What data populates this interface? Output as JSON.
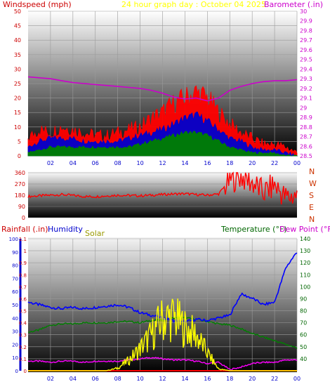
{
  "chart_data": [
    {
      "type": "line",
      "title": "24 hour graph day : October 04 2025",
      "left_axis_label": "Windspeed (mph)",
      "right_axis_label": "Barometer (.in)",
      "x_ticks": [
        "02",
        "04",
        "06",
        "08",
        "10",
        "12",
        "14",
        "16",
        "18",
        "20",
        "22",
        "00"
      ],
      "ylim": [
        0,
        50
      ],
      "y_ticks": [
        0,
        5,
        10,
        15,
        20,
        25,
        30,
        35,
        40,
        45,
        50
      ],
      "ylim_right": [
        28.5,
        30.0
      ],
      "y_ticks_right": [
        "28.5",
        "28.6",
        "28.7",
        "28.8",
        "28.9",
        "29",
        "29.1",
        "29.2",
        "29.3",
        "29.4",
        "29.5",
        "29.6",
        "29.7",
        "29.8",
        "29.9",
        "30"
      ],
      "grid": true,
      "x": [
        0,
        1,
        2,
        3,
        4,
        5,
        6,
        7,
        8,
        9,
        10,
        11,
        12,
        13,
        14,
        15,
        16,
        17,
        18,
        19,
        20,
        21,
        22,
        23,
        24
      ],
      "series": [
        {
          "color": "#ff0000",
          "values": [
            6,
            9,
            8,
            10,
            9,
            8,
            7,
            7,
            8,
            9,
            10,
            13,
            15,
            18,
            20,
            22,
            20,
            15,
            11,
            8,
            6,
            4,
            4,
            3,
            1
          ]
        },
        {
          "color": "#0000cc",
          "values": [
            3,
            5,
            6,
            6,
            6,
            5,
            5,
            5,
            5,
            6,
            7,
            8,
            9,
            11,
            13,
            14,
            12,
            9,
            6,
            5,
            3,
            2,
            2,
            1,
            0
          ]
        },
        {
          "color": "#008000",
          "values": [
            1,
            2,
            3,
            3,
            3,
            3,
            3,
            3,
            3,
            3,
            4,
            5,
            6,
            7,
            8,
            8,
            7,
            5,
            3,
            2,
            1,
            1,
            1,
            0,
            0
          ]
        },
        {
          "color": "#cc00cc",
          "values": [
            29.32,
            29.31,
            29.3,
            29.28,
            29.26,
            29.25,
            29.24,
            29.23,
            29.22,
            29.21,
            29.2,
            29.18,
            29.15,
            29.11,
            29.09,
            29.1,
            29.07,
            29.1,
            29.18,
            29.22,
            29.25,
            29.27,
            29.28,
            29.28,
            29.29
          ]
        }
      ]
    },
    {
      "type": "line",
      "x_ticks": [],
      "ylim": [
        0,
        360
      ],
      "y_ticks": [
        0,
        90,
        180,
        270,
        360
      ],
      "direction_labels": [
        "N",
        "W",
        "S",
        "E",
        "N"
      ],
      "x": [
        0,
        1,
        2,
        3,
        4,
        5,
        6,
        7,
        8,
        9,
        10,
        11,
        12,
        13,
        14,
        15,
        16,
        17,
        18,
        19,
        20,
        21,
        22,
        23,
        24
      ],
      "series": [
        {
          "color": "#ff0000",
          "values": [
            170,
            175,
            180,
            185,
            178,
            170,
            168,
            175,
            180,
            178,
            175,
            180,
            185,
            190,
            192,
            185,
            180,
            190,
            300,
            330,
            280,
            200,
            260,
            160,
            180
          ]
        }
      ]
    },
    {
      "type": "line",
      "legend_labels": [
        "Rainfall (.in)",
        "Humidity",
        "Solar",
        "Temperature (°F)",
        "Dew Point (°F)"
      ],
      "x_ticks": [
        "02",
        "04",
        "06",
        "08",
        "10",
        "12",
        "14",
        "16",
        "18",
        "20",
        "22",
        "00"
      ],
      "ylim_humidity": [
        0,
        100
      ],
      "y_ticks_humidity": [
        0,
        10,
        20,
        30,
        40,
        50,
        60,
        70,
        80,
        90,
        100
      ],
      "ylim_rain": [
        0,
        1.1
      ],
      "y_ticks_rain": [
        "0",
        "0.1",
        "0.2",
        "0.3",
        "0.4",
        "0.5",
        "0.6",
        "0.7",
        "0.8",
        "0.9",
        "1",
        "1.1"
      ],
      "ylim_temp": [
        30,
        140
      ],
      "y_ticks_temp": [
        40,
        50,
        60,
        70,
        80,
        90,
        100,
        110,
        120,
        130,
        140
      ],
      "grid": true,
      "x": [
        0,
        1,
        2,
        3,
        4,
        5,
        6,
        7,
        8,
        9,
        10,
        11,
        12,
        13,
        14,
        15,
        16,
        17,
        18,
        19,
        20,
        21,
        22,
        23,
        24
      ],
      "series": [
        {
          "name": "Humidity",
          "color": "#0000ff",
          "values": [
            52,
            50,
            48,
            47,
            48,
            47,
            48,
            49,
            50,
            48,
            44,
            42,
            40,
            38,
            37,
            39,
            38,
            40,
            42,
            58,
            55,
            50,
            52,
            78,
            90
          ]
        },
        {
          "name": "Temperature (°F)",
          "color": "#008000",
          "values": [
            62,
            64,
            68,
            69,
            69,
            70,
            70,
            70,
            71,
            71,
            70,
            72,
            72,
            74,
            74,
            73,
            71,
            69,
            68,
            65,
            61,
            58,
            55,
            52,
            49
          ]
        },
        {
          "name": "Dew Point (°F)",
          "color": "#ff00ff",
          "values": [
            38,
            38,
            37,
            38,
            38,
            37,
            38,
            38,
            38,
            39,
            40,
            41,
            40,
            39,
            39,
            38,
            36,
            37,
            31,
            33,
            36,
            37,
            37,
            39,
            39
          ]
        },
        {
          "name": "Solar",
          "color": "#ffff00",
          "values": [
            0,
            0,
            0,
            0,
            0,
            0,
            0,
            0,
            3,
            12,
            25,
            40,
            58,
            60,
            48,
            40,
            20,
            2,
            0,
            0,
            0,
            0,
            0,
            0,
            0
          ]
        },
        {
          "name": "Rainfall (.in)",
          "color": "#ff0000",
          "values": [
            0,
            0,
            0,
            0,
            0,
            0,
            0,
            0,
            0,
            0,
            0,
            0,
            0,
            0,
            0,
            0,
            0,
            0,
            0,
            0,
            0,
            0,
            0,
            0,
            0
          ]
        }
      ]
    }
  ]
}
